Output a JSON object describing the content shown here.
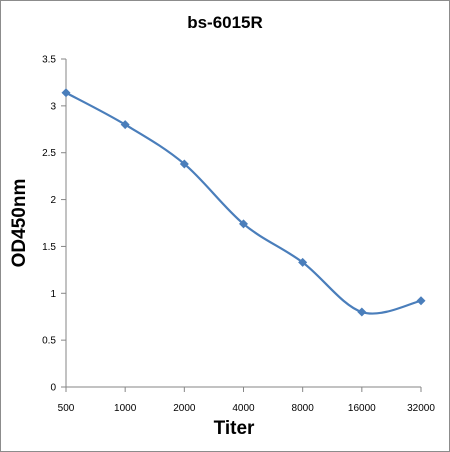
{
  "chart_data": {
    "type": "line",
    "title": "bs-6015R",
    "xlabel": "Titer",
    "ylabel": "OD450nm",
    "categories": [
      "500",
      "1000",
      "2000",
      "4000",
      "8000",
      "16000",
      "32000"
    ],
    "series": [
      {
        "values": [
          3.14,
          2.8,
          2.38,
          1.74,
          1.33,
          0.8,
          0.92
        ]
      }
    ],
    "ylim": [
      0,
      3.5
    ],
    "yticks": [
      "0",
      "0.5",
      "1",
      "1.5",
      "2",
      "2.5",
      "3",
      "3.5"
    ],
    "grid": false,
    "legend": "none",
    "line_color": "#4a7ebb",
    "marker": "diamond"
  }
}
